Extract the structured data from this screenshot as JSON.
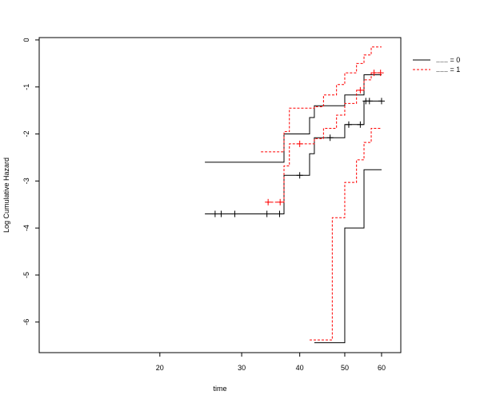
{
  "chart_data": {
    "type": "line",
    "title": "",
    "xlabel": "time",
    "ylabel": "Log Cumulative Hazard",
    "x_scale": "log",
    "xlim": [
      11,
      66
    ],
    "ylim": [
      -6.65,
      0.05
    ],
    "x_ticks": [
      20,
      30,
      40,
      50,
      60
    ],
    "y_ticks": [
      0,
      -1,
      -2,
      -3,
      -4,
      -5,
      -6
    ],
    "grid": false,
    "legend_position": "top-right",
    "colors": {
      "group0": "#000000",
      "group1": "#ff0000"
    },
    "series": [
      {
        "name": "...... = 0",
        "color": "#000000",
        "line": "solid",
        "estimate": [
          [
            25,
            -3.7
          ],
          [
            37,
            -3.7
          ],
          [
            37,
            -2.88
          ],
          [
            42,
            -2.88
          ],
          [
            42,
            -2.42
          ],
          [
            43,
            -2.42
          ],
          [
            43,
            -2.08
          ],
          [
            50,
            -2.08
          ],
          [
            50,
            -1.8
          ],
          [
            55,
            -1.8
          ],
          [
            55,
            -1.3
          ],
          [
            60,
            -1.3
          ]
        ],
        "upper": [
          [
            25,
            -2.6
          ],
          [
            37,
            -2.6
          ],
          [
            37,
            -2.0
          ],
          [
            42,
            -2.0
          ],
          [
            42,
            -1.65
          ],
          [
            43,
            -1.65
          ],
          [
            43,
            -1.4
          ],
          [
            50,
            -1.4
          ],
          [
            50,
            -1.17
          ],
          [
            55,
            -1.17
          ],
          [
            55,
            -0.74
          ],
          [
            60,
            -0.74
          ]
        ],
        "lower": [
          [
            43,
            -6.44
          ],
          [
            50,
            -6.44
          ],
          [
            50,
            -4.0
          ],
          [
            55,
            -4.0
          ],
          [
            55,
            -2.76
          ],
          [
            60,
            -2.76
          ]
        ],
        "censored": [
          [
            26.3,
            -3.7
          ],
          [
            27.1,
            -3.7
          ],
          [
            29,
            -3.7
          ],
          [
            34,
            -3.7
          ],
          [
            36.2,
            -3.7
          ],
          [
            40,
            -2.88
          ],
          [
            46.5,
            -2.08
          ],
          [
            51,
            -1.8
          ],
          [
            54,
            -1.8
          ],
          [
            55.5,
            -1.3
          ],
          [
            56.5,
            -1.3
          ],
          [
            60,
            -1.3
          ]
        ]
      },
      {
        "name": "...... = 1",
        "color": "#ff0000",
        "line": "dashed",
        "estimate": [
          [
            34,
            -3.45
          ],
          [
            37,
            -3.45
          ],
          [
            37,
            -2.68
          ],
          [
            38,
            -2.68
          ],
          [
            38,
            -2.21
          ],
          [
            43,
            -2.21
          ],
          [
            43,
            -2.1
          ],
          [
            45,
            -2.1
          ],
          [
            45,
            -1.88
          ],
          [
            48,
            -1.88
          ],
          [
            48,
            -1.6
          ],
          [
            50,
            -1.6
          ],
          [
            50,
            -1.35
          ],
          [
            53,
            -1.35
          ],
          [
            53,
            -1.07
          ],
          [
            55,
            -1.07
          ],
          [
            55,
            -0.85
          ],
          [
            57,
            -0.85
          ],
          [
            57,
            -0.7
          ],
          [
            60,
            -0.7
          ]
        ],
        "upper": [
          [
            33,
            -2.38
          ],
          [
            37,
            -2.38
          ],
          [
            37,
            -1.95
          ],
          [
            38,
            -1.95
          ],
          [
            38,
            -1.45
          ],
          [
            43,
            -1.45
          ],
          [
            43,
            -1.42
          ],
          [
            45,
            -1.42
          ],
          [
            45,
            -1.17
          ],
          [
            48,
            -1.17
          ],
          [
            48,
            -0.95
          ],
          [
            50,
            -0.95
          ],
          [
            50,
            -0.7
          ],
          [
            53,
            -0.7
          ],
          [
            53,
            -0.5
          ],
          [
            55,
            -0.5
          ],
          [
            55,
            -0.32
          ],
          [
            57,
            -0.32
          ],
          [
            57,
            -0.15
          ],
          [
            60,
            -0.15
          ]
        ],
        "lower": [
          [
            42,
            -6.38
          ],
          [
            47,
            -6.38
          ],
          [
            47,
            -3.78
          ],
          [
            48,
            -3.78
          ],
          [
            48,
            -3.78
          ],
          [
            50,
            -3.78
          ],
          [
            50,
            -3.03
          ],
          [
            53,
            -3.03
          ],
          [
            53,
            -2.55
          ],
          [
            55,
            -2.55
          ],
          [
            55,
            -2.18
          ],
          [
            57,
            -2.18
          ],
          [
            57,
            -1.88
          ],
          [
            60,
            -1.88
          ]
        ],
        "censored": [
          [
            34.2,
            -3.45
          ],
          [
            36.3,
            -3.45
          ],
          [
            40,
            -2.21
          ],
          [
            54,
            -1.07
          ],
          [
            57.8,
            -0.7
          ],
          [
            59.7,
            -0.7
          ]
        ]
      }
    ]
  }
}
